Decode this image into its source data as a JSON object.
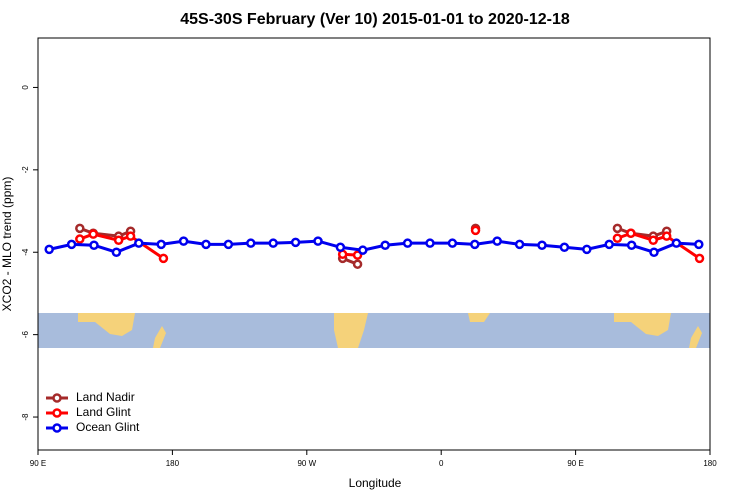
{
  "chart_data": {
    "type": "line",
    "title": "45S-30S February (Ver 10)   2015-01-01 to 2020-12-18",
    "x_label": "Longitude",
    "y_label": "XCO2 - MLO trend (ppm)",
    "xlim": [
      90,
      540
    ],
    "ylim": [
      -8.8,
      1.2
    ],
    "xticks": [
      {
        "value": 90,
        "label": "90 E"
      },
      180,
      {
        "value": 270,
        "label": "90 W"
      },
      {
        "value": 360,
        "label": "0"
      },
      {
        "value": 450,
        "label": "90 E"
      },
      {
        "value": 540,
        "label": "180"
      }
    ],
    "yticks": [
      0,
      -2,
      -4,
      -6,
      -8
    ],
    "legend": "bottom-left",
    "series": [
      {
        "name": "Land Nadir",
        "color": "#a52a2a",
        "x": [
          118,
          127,
          144,
          152,
          250,
          294,
          304,
          340,
          383,
          430,
          478,
          487,
          502,
          511
        ],
        "values": [
          -3.42,
          -3.54,
          -3.61,
          -3.49,
          null,
          -4.15,
          -4.29,
          null,
          -3.42,
          null,
          -3.42,
          -3.54,
          -3.61,
          -3.49
        ]
      },
      {
        "name": "Land Glint",
        "color": "#ff0000",
        "x": [
          118,
          127,
          144,
          152,
          174,
          250,
          294,
          304,
          340,
          383,
          430,
          478,
          487,
          502,
          511,
          533
        ],
        "values": [
          -3.68,
          -3.56,
          -3.71,
          -3.61,
          -4.15,
          null,
          -4.05,
          -4.07,
          null,
          -3.47,
          null,
          -3.66,
          -3.54,
          -3.71,
          -3.61,
          -4.15
        ]
      },
      {
        "name": "Ocean Glint",
        "color": "#0000ee",
        "x": [
          97.5,
          112.5,
          127.5,
          142.5,
          157.5,
          172.5,
          187.5,
          202.5,
          217.5,
          232.5,
          247.5,
          262.5,
          277.5,
          292.5,
          307.5,
          322.5,
          337.5,
          352.5,
          367.5,
          382.5,
          397.5,
          412.5,
          427.5,
          442.5,
          457.5,
          472.5,
          487.5,
          502.5,
          517.5,
          532.5
        ],
        "values": [
          -3.93,
          -3.81,
          -3.83,
          -4.0,
          -3.78,
          -3.81,
          -3.73,
          -3.81,
          -3.81,
          -3.78,
          -3.78,
          -3.76,
          -3.73,
          -3.88,
          -3.95,
          -3.83,
          -3.78,
          -3.78,
          -3.78,
          -3.81,
          -3.73,
          -3.81,
          -3.83,
          -3.88,
          -3.93,
          -3.81,
          -3.83,
          -4.0,
          -3.78,
          -3.81
        ]
      }
    ]
  }
}
